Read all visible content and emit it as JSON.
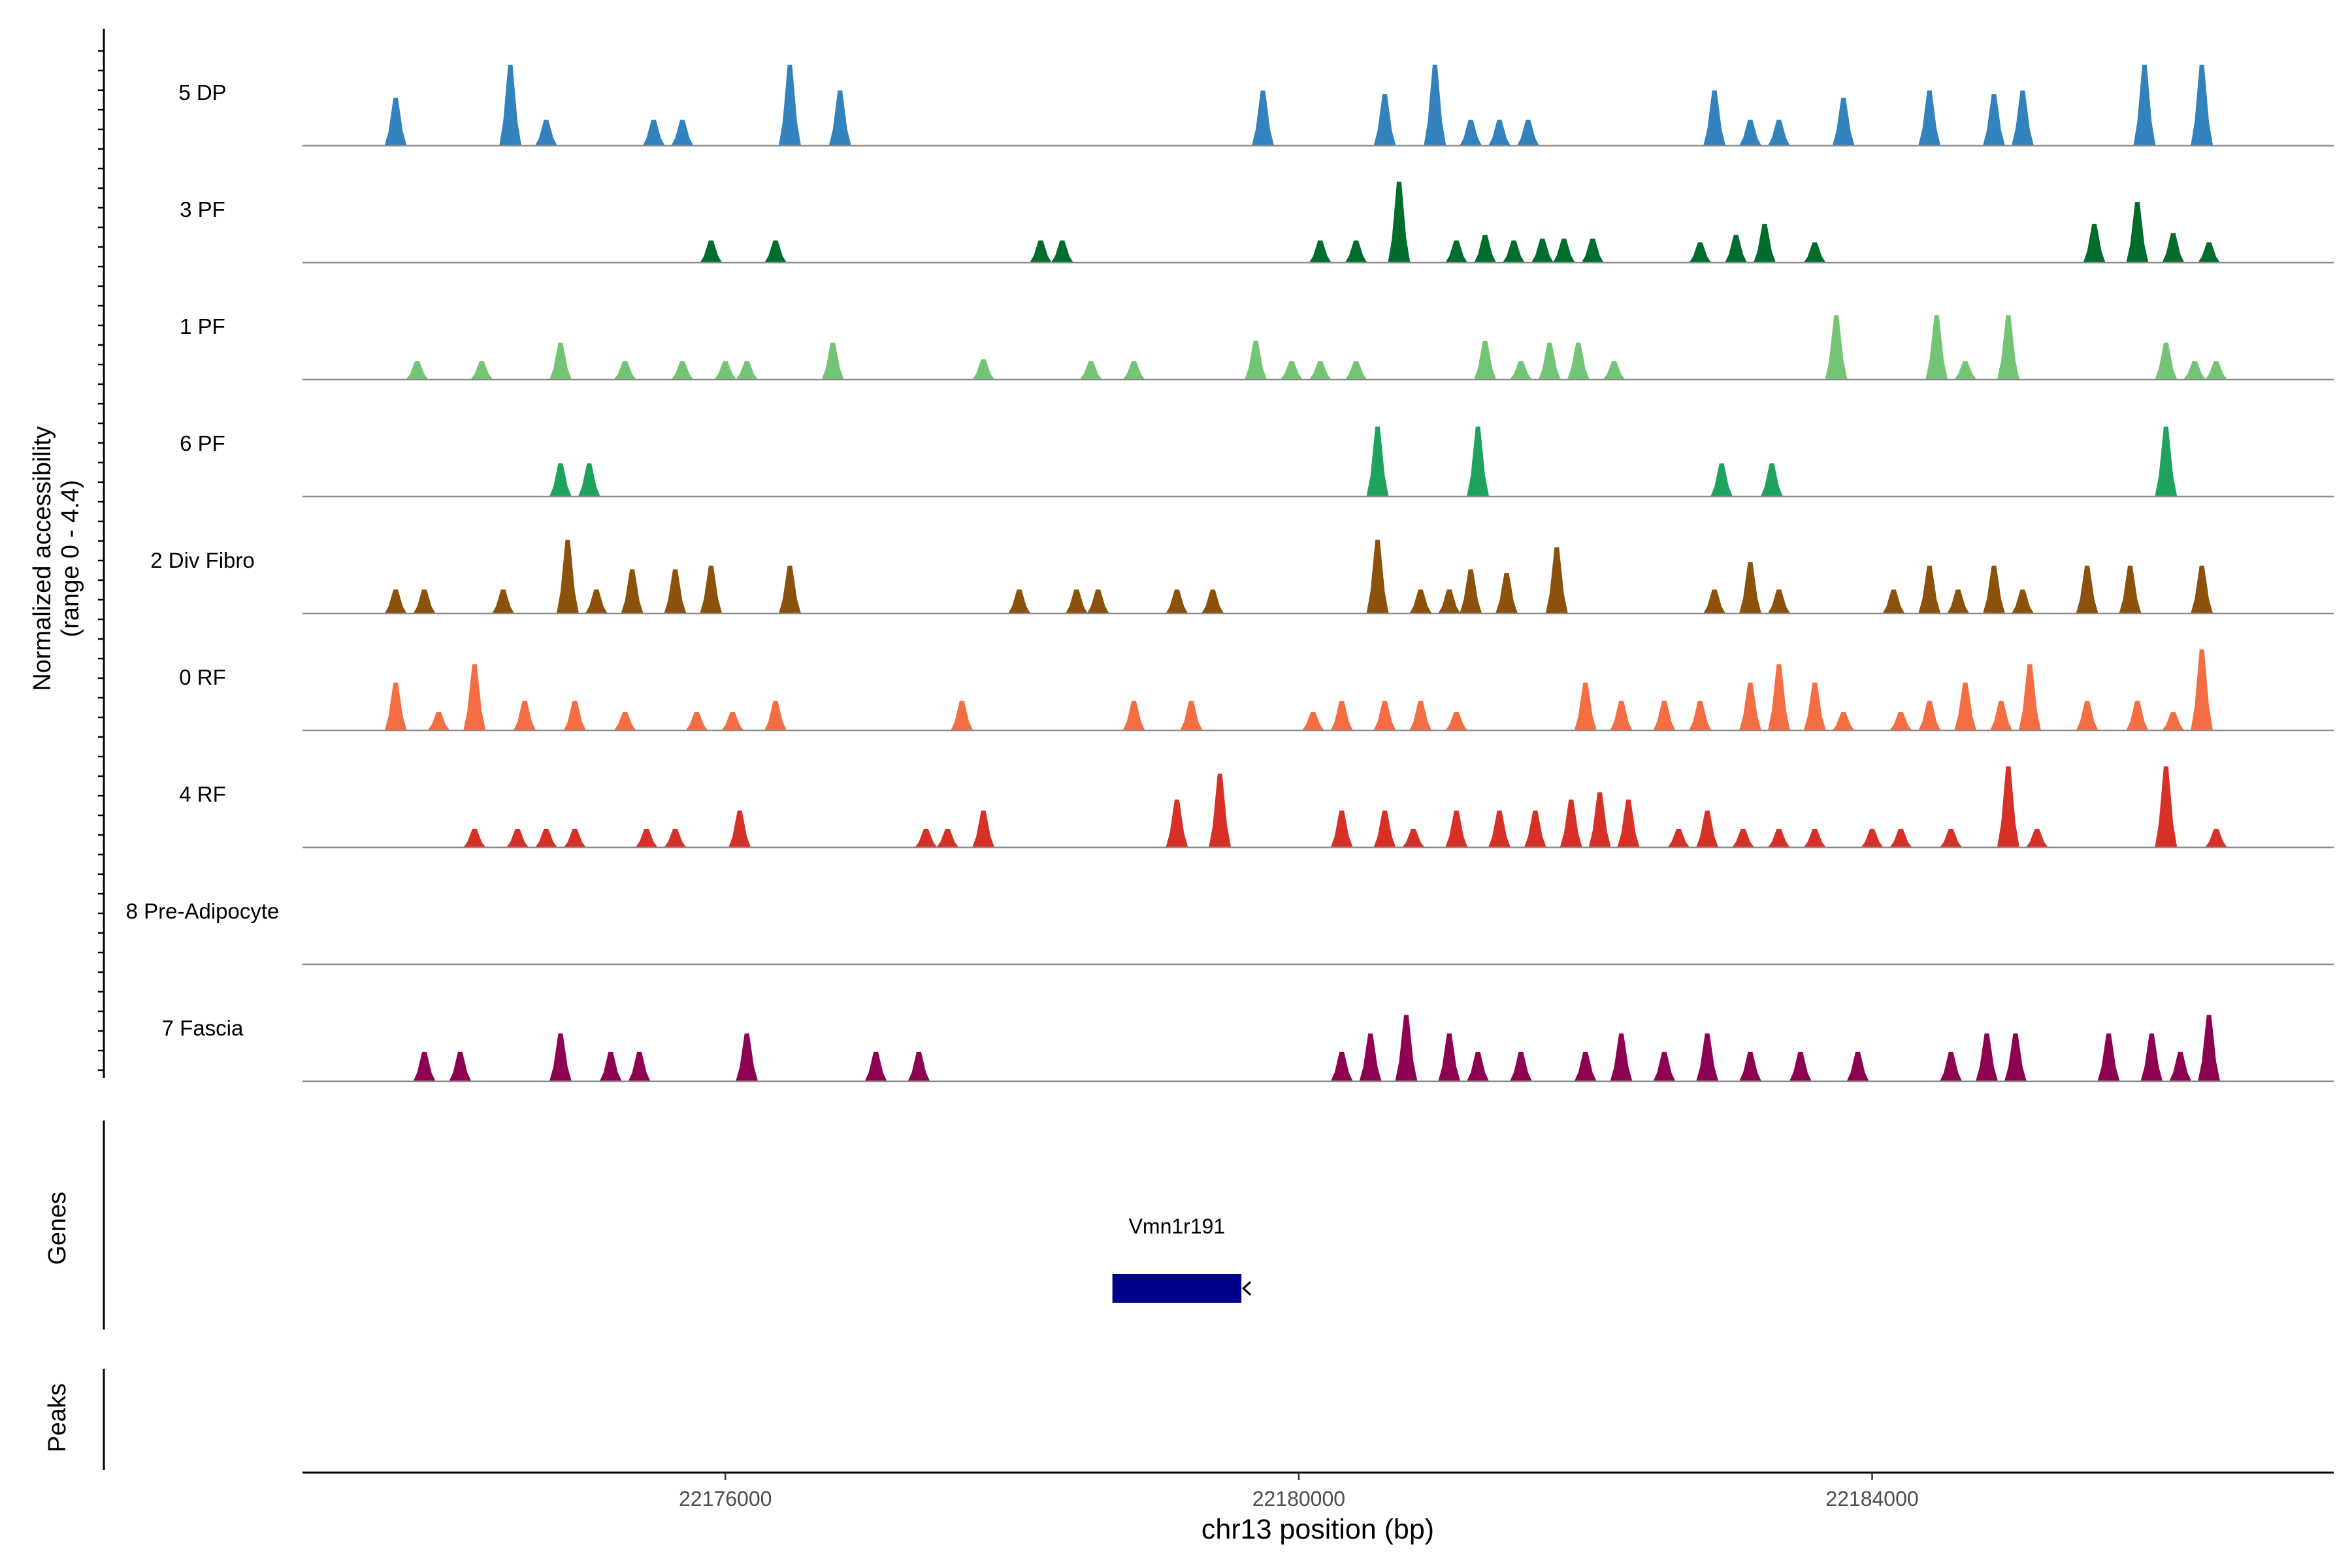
{
  "chart_data": {
    "type": "area",
    "title": "",
    "ylabel_line1": "Normalized accessibility",
    "ylabel_line2": "(range 0 - 4.4)",
    "ylim": [
      0,
      4.4
    ],
    "xlabel": "chr13 position (bp)",
    "xlim": [
      22173050,
      22187220
    ],
    "x_ticks": [
      22176000,
      22180000,
      22184000
    ],
    "x_tick_labels": [
      "22176000",
      "22180000",
      "22184000"
    ],
    "genes_label": "Genes",
    "peaks_label": "Peaks",
    "gene": {
      "name": "Vmn1r191",
      "start": 22178700,
      "end": 22179600,
      "strand": "-",
      "color": "#00008B"
    },
    "tracks": [
      {
        "label": "5 DP",
        "color": "#3182BD",
        "peaks": [
          [
            22173700,
            2.6
          ],
          [
            22174500,
            4.4
          ],
          [
            22174750,
            1.4
          ],
          [
            22175500,
            1.4
          ],
          [
            22175700,
            1.4
          ],
          [
            22176450,
            4.4
          ],
          [
            22176800,
            3.0
          ],
          [
            22179750,
            3.0
          ],
          [
            22180600,
            2.8
          ],
          [
            22180950,
            4.4
          ],
          [
            22181200,
            1.4
          ],
          [
            22181400,
            1.4
          ],
          [
            22181600,
            1.4
          ],
          [
            22182900,
            3.0
          ],
          [
            22183150,
            1.4
          ],
          [
            22183350,
            1.4
          ],
          [
            22183800,
            2.6
          ],
          [
            22184400,
            3.0
          ],
          [
            22184850,
            2.8
          ],
          [
            22185050,
            3.0
          ],
          [
            22185900,
            4.4
          ],
          [
            22186300,
            4.4
          ]
        ]
      },
      {
        "label": "3 PF",
        "color": "#006D2C",
        "peaks": [
          [
            22175900,
            1.2
          ],
          [
            22176350,
            1.2
          ],
          [
            22178200,
            1.2
          ],
          [
            22178350,
            1.2
          ],
          [
            22180150,
            1.2
          ],
          [
            22180400,
            1.2
          ],
          [
            22180700,
            4.4
          ],
          [
            22181100,
            1.2
          ],
          [
            22181300,
            1.5
          ],
          [
            22181500,
            1.2
          ],
          [
            22181700,
            1.3
          ],
          [
            22181850,
            1.3
          ],
          [
            22182050,
            1.3
          ],
          [
            22182800,
            1.1
          ],
          [
            22183050,
            1.5
          ],
          [
            22183250,
            2.1
          ],
          [
            22183600,
            1.1
          ],
          [
            22185550,
            2.1
          ],
          [
            22185850,
            3.3
          ],
          [
            22186100,
            1.6
          ],
          [
            22186350,
            1.1
          ]
        ]
      },
      {
        "label": "1 PF",
        "color": "#74C476",
        "peaks": [
          [
            22173850,
            1.0
          ],
          [
            22174300,
            1.0
          ],
          [
            22174850,
            2.0
          ],
          [
            22175300,
            1.0
          ],
          [
            22175700,
            1.0
          ],
          [
            22176000,
            1.0
          ],
          [
            22176150,
            1.0
          ],
          [
            22176750,
            2.0
          ],
          [
            22177800,
            1.1
          ],
          [
            22178550,
            1.0
          ],
          [
            22178850,
            1.0
          ],
          [
            22179700,
            2.1
          ],
          [
            22179950,
            1.0
          ],
          [
            22180150,
            1.0
          ],
          [
            22180400,
            1.0
          ],
          [
            22181300,
            2.1
          ],
          [
            22181550,
            1.0
          ],
          [
            22181750,
            2.0
          ],
          [
            22181950,
            2.0
          ],
          [
            22182200,
            1.0
          ],
          [
            22183750,
            3.5
          ],
          [
            22184450,
            3.5
          ],
          [
            22184650,
            1.0
          ],
          [
            22184950,
            3.5
          ],
          [
            22186050,
            2.0
          ],
          [
            22186250,
            1.0
          ],
          [
            22186400,
            1.0
          ]
        ]
      },
      {
        "label": "6 PF",
        "color": "#1EA35E",
        "peaks": [
          [
            22174850,
            1.8
          ],
          [
            22175050,
            1.8
          ],
          [
            22180550,
            3.8
          ],
          [
            22181250,
            3.8
          ],
          [
            22182950,
            1.8
          ],
          [
            22183300,
            1.8
          ],
          [
            22186050,
            3.8
          ]
        ]
      },
      {
        "label": "2 Div Fibro",
        "color": "#8C510A",
        "peaks": [
          [
            22173700,
            1.3
          ],
          [
            22173900,
            1.3
          ],
          [
            22174450,
            1.3
          ],
          [
            22174900,
            4.0
          ],
          [
            22175100,
            1.3
          ],
          [
            22175350,
            2.4
          ],
          [
            22175650,
            2.4
          ],
          [
            22175900,
            2.6
          ],
          [
            22176450,
            2.6
          ],
          [
            22178050,
            1.3
          ],
          [
            22178450,
            1.3
          ],
          [
            22178600,
            1.3
          ],
          [
            22179150,
            1.3
          ],
          [
            22179400,
            1.3
          ],
          [
            22180550,
            4.0
          ],
          [
            22180850,
            1.3
          ],
          [
            22181050,
            1.3
          ],
          [
            22181200,
            2.4
          ],
          [
            22181450,
            2.2
          ],
          [
            22181800,
            3.6
          ],
          [
            22182900,
            1.3
          ],
          [
            22183150,
            2.8
          ],
          [
            22183350,
            1.3
          ],
          [
            22184150,
            1.3
          ],
          [
            22184400,
            2.6
          ],
          [
            22184600,
            1.3
          ],
          [
            22184850,
            2.6
          ],
          [
            22185050,
            1.3
          ],
          [
            22185500,
            2.6
          ],
          [
            22185800,
            2.6
          ],
          [
            22186300,
            2.6
          ]
        ]
      },
      {
        "label": "0 RF",
        "color": "#F46D43",
        "peaks": [
          [
            22173700,
            2.6
          ],
          [
            22174000,
            1.0
          ],
          [
            22174250,
            3.6
          ],
          [
            22174600,
            1.6
          ],
          [
            22174950,
            1.6
          ],
          [
            22175300,
            1.0
          ],
          [
            22175800,
            1.0
          ],
          [
            22176050,
            1.0
          ],
          [
            22176350,
            1.6
          ],
          [
            22177650,
            1.6
          ],
          [
            22178850,
            1.6
          ],
          [
            22179250,
            1.6
          ],
          [
            22180100,
            1.0
          ],
          [
            22180300,
            1.6
          ],
          [
            22180600,
            1.6
          ],
          [
            22180850,
            1.6
          ],
          [
            22181100,
            1.0
          ],
          [
            22182000,
            2.6
          ],
          [
            22182250,
            1.6
          ],
          [
            22182550,
            1.6
          ],
          [
            22182800,
            1.6
          ],
          [
            22183150,
            2.6
          ],
          [
            22183350,
            3.6
          ],
          [
            22183600,
            2.6
          ],
          [
            22183800,
            1.0
          ],
          [
            22184200,
            1.0
          ],
          [
            22184400,
            1.6
          ],
          [
            22184650,
            2.6
          ],
          [
            22184900,
            1.6
          ],
          [
            22185100,
            3.6
          ],
          [
            22185500,
            1.6
          ],
          [
            22185850,
            1.6
          ],
          [
            22186100,
            1.0
          ],
          [
            22186300,
            4.4
          ]
        ]
      },
      {
        "label": "4 RF",
        "color": "#D73027",
        "peaks": [
          [
            22174250,
            1.0
          ],
          [
            22174550,
            1.0
          ],
          [
            22174750,
            1.0
          ],
          [
            22174950,
            1.0
          ],
          [
            22175450,
            1.0
          ],
          [
            22175650,
            1.0
          ],
          [
            22176100,
            2.0
          ],
          [
            22177400,
            1.0
          ],
          [
            22177550,
            1.0
          ],
          [
            22177800,
            2.0
          ],
          [
            22179150,
            2.6
          ],
          [
            22179450,
            4.0
          ],
          [
            22180300,
            2.0
          ],
          [
            22180600,
            2.0
          ],
          [
            22180800,
            1.0
          ],
          [
            22181100,
            2.0
          ],
          [
            22181400,
            2.0
          ],
          [
            22181650,
            2.0
          ],
          [
            22181900,
            2.6
          ],
          [
            22182100,
            3.0
          ],
          [
            22182300,
            2.6
          ],
          [
            22182650,
            1.0
          ],
          [
            22182850,
            2.0
          ],
          [
            22183100,
            1.0
          ],
          [
            22183350,
            1.0
          ],
          [
            22183600,
            1.0
          ],
          [
            22184000,
            1.0
          ],
          [
            22184200,
            1.0
          ],
          [
            22184550,
            1.0
          ],
          [
            22184950,
            4.4
          ],
          [
            22185150,
            1.0
          ],
          [
            22186050,
            4.4
          ],
          [
            22186400,
            1.0
          ]
        ]
      },
      {
        "label": "8 Pre-Adipocyte",
        "color": "#999999",
        "peaks": []
      },
      {
        "label": "7 Fascia",
        "color": "#8E0152",
        "peaks": [
          [
            22173900,
            1.6
          ],
          [
            22174150,
            1.6
          ],
          [
            22174850,
            2.6
          ],
          [
            22175200,
            1.6
          ],
          [
            22175400,
            1.6
          ],
          [
            22176150,
            2.6
          ],
          [
            22177050,
            1.6
          ],
          [
            22177350,
            1.6
          ],
          [
            22180300,
            1.6
          ],
          [
            22180500,
            2.6
          ],
          [
            22180750,
            3.6
          ],
          [
            22181050,
            2.6
          ],
          [
            22181250,
            1.6
          ],
          [
            22181550,
            1.6
          ],
          [
            22182000,
            1.6
          ],
          [
            22182250,
            2.6
          ],
          [
            22182550,
            1.6
          ],
          [
            22182850,
            2.6
          ],
          [
            22183150,
            1.6
          ],
          [
            22183500,
            1.6
          ],
          [
            22183900,
            1.6
          ],
          [
            22184550,
            1.6
          ],
          [
            22184800,
            2.6
          ],
          [
            22185000,
            2.6
          ],
          [
            22185650,
            2.6
          ],
          [
            22185950,
            2.6
          ],
          [
            22186150,
            1.6
          ],
          [
            22186350,
            3.6
          ]
        ]
      }
    ]
  }
}
